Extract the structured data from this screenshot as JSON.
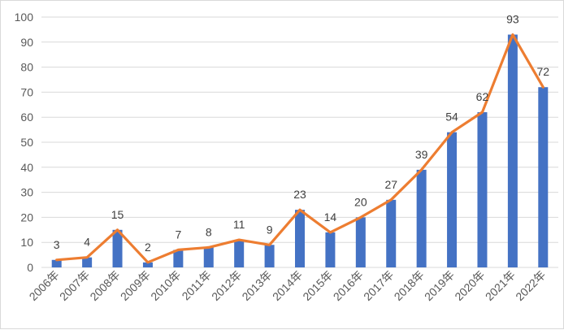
{
  "chart_data": {
    "type": "bar",
    "categories": [
      "2006年",
      "2007年",
      "2008年",
      "2009年",
      "2010年",
      "2011年",
      "2012年",
      "2013年",
      "2014年",
      "2015年",
      "2016年",
      "2017年",
      "2018年",
      "2019年",
      "2020年",
      "2021年",
      "2022年"
    ],
    "series": [
      {
        "type": "bar",
        "values": [
          3,
          4,
          15,
          2,
          7,
          8,
          11,
          9,
          23,
          14,
          20,
          27,
          39,
          54,
          62,
          93,
          72
        ]
      },
      {
        "type": "line",
        "values": [
          3,
          4,
          15,
          2,
          7,
          8,
          11,
          9,
          23,
          14,
          20,
          27,
          39,
          54,
          62,
          93,
          72
        ]
      }
    ],
    "data_labels": [
      "3",
      "4",
      "15",
      "2",
      "7",
      "8",
      "11",
      "9",
      "23",
      "14",
      "20",
      "27",
      "39",
      "54",
      "62",
      "93",
      "72"
    ],
    "yticks": [
      "0",
      "10",
      "20",
      "30",
      "40",
      "50",
      "60",
      "70",
      "80",
      "90",
      "100"
    ],
    "ylim": [
      0,
      100
    ],
    "grid": true,
    "legend": "none",
    "colors": {
      "bar": "#4472c4",
      "line": "#ed7d31"
    }
  }
}
